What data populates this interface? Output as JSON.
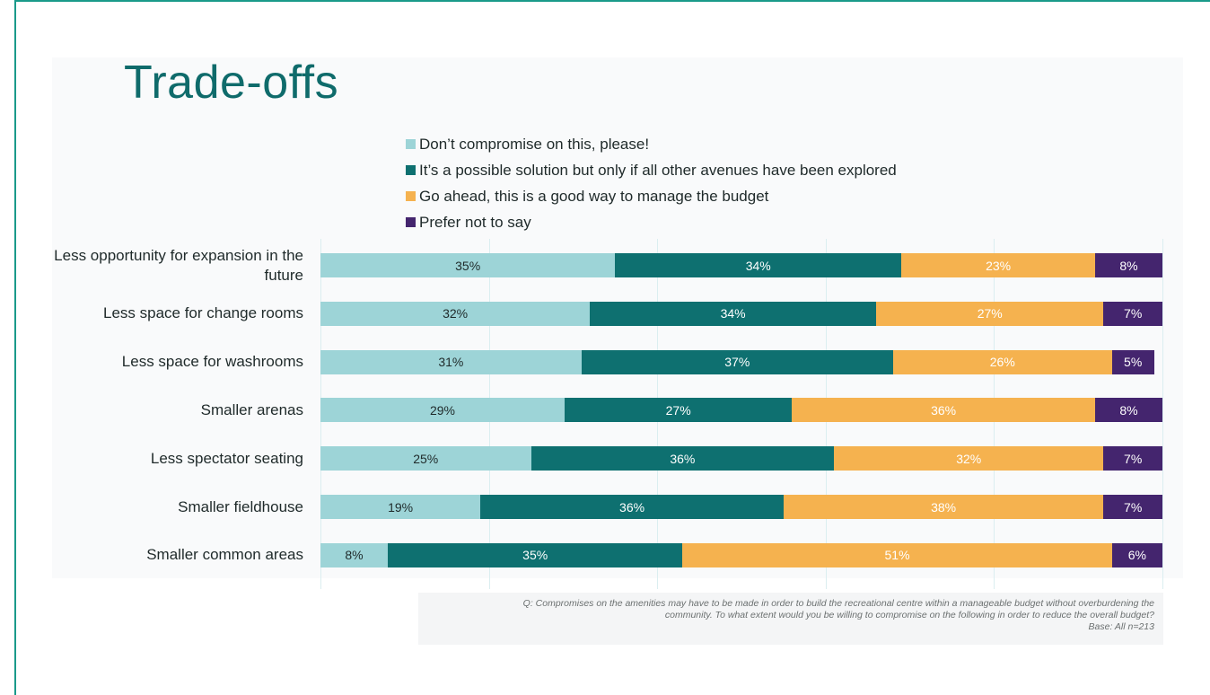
{
  "slide": {
    "title": "Trade-offs",
    "footnote_line1": "Q: Compromises on the amenities may have to be made in order to build the recreational centre within a manageable budget without overburdening the",
    "footnote_line2": "community. To what extent would you be willing to compromise on the following in order to reduce the overall budget?",
    "footnote_line3": "Base: All n=213"
  },
  "chart_data": {
    "type": "bar",
    "orientation": "horizontal",
    "stacked": true,
    "xlim": [
      0,
      100
    ],
    "grid": true,
    "legend_position": "top",
    "categories": [
      "Less opportunity for expansion in the future",
      "Less space for change rooms",
      "Less space for washrooms",
      "Smaller arenas",
      "Less spectator seating",
      "Smaller fieldhouse",
      "Smaller common areas"
    ],
    "series": [
      {
        "name": "Don’t compromise on this, please!",
        "color": "#9dd4d7",
        "label_color": "#1f2a2a",
        "values": [
          35,
          32,
          31,
          29,
          25,
          19,
          8
        ]
      },
      {
        "name": "It’s a possible solution but only if all other avenues have been explored",
        "color": "#0e7070",
        "label_color": "#ffffff",
        "values": [
          34,
          34,
          37,
          27,
          36,
          36,
          35
        ]
      },
      {
        "name": "Go ahead, this is a good way to manage the budget",
        "color": "#f5b24f",
        "label_color": "#ffffff",
        "values": [
          23,
          27,
          26,
          36,
          32,
          38,
          51
        ]
      },
      {
        "name": "Prefer not to say",
        "color": "#44256e",
        "label_color": "#ffffff",
        "values": [
          8,
          7,
          5,
          8,
          7,
          7,
          6
        ]
      }
    ]
  }
}
